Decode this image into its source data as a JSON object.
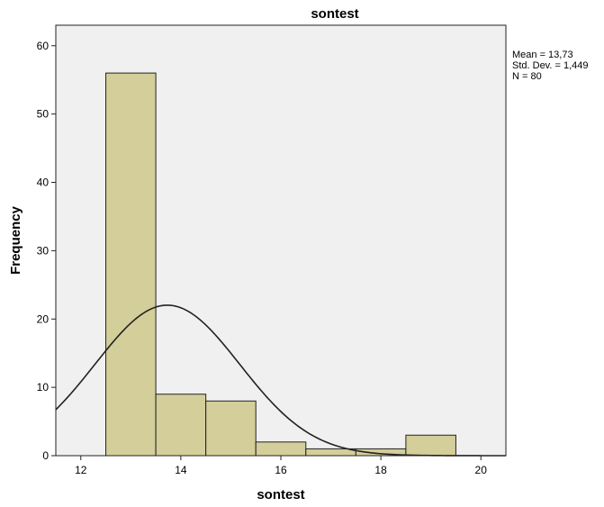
{
  "chart_data": {
    "type": "bar",
    "subtype": "histogram",
    "title": "sontest",
    "xlabel": "sontest",
    "ylabel": "Frequency",
    "xlim": [
      11.5,
      20.5
    ],
    "ylim": [
      0,
      63
    ],
    "x_ticks": [
      12,
      14,
      16,
      18,
      20
    ],
    "y_ticks": [
      0,
      10,
      20,
      30,
      40,
      50,
      60
    ],
    "bins": [
      {
        "start": 12.5,
        "end": 13.5,
        "count": 56
      },
      {
        "start": 13.5,
        "end": 14.5,
        "count": 9
      },
      {
        "start": 14.5,
        "end": 15.5,
        "count": 8
      },
      {
        "start": 15.5,
        "end": 16.5,
        "count": 2
      },
      {
        "start": 16.5,
        "end": 17.5,
        "count": 1
      },
      {
        "start": 17.5,
        "end": 18.5,
        "count": 1
      },
      {
        "start": 18.5,
        "end": 19.5,
        "count": 3
      }
    ],
    "normal_curve": {
      "mean": 13.73,
      "std_dev": 1.449,
      "n": 80,
      "bin_width": 1
    },
    "stats_lines": [
      "Mean = 13,73",
      "Std. Dev. = 1,449",
      "N = 80"
    ],
    "grid": false,
    "colors": {
      "bar_fill": "#D3CE9A",
      "bar_stroke": "#222222",
      "plot_bg": "#F0F0F0",
      "curve": "#222222"
    }
  }
}
